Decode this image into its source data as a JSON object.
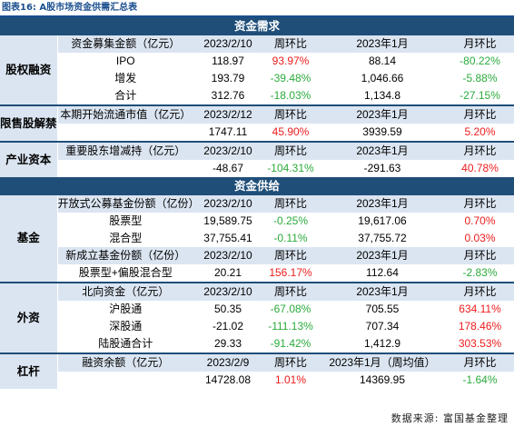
{
  "caption": "图表16: A股市场资金供需汇总表",
  "footer": "数据来源: 富国基金整理",
  "colors": {
    "header_bg": "#1f4e79",
    "label_bg": "#dbe5f1",
    "negative": "#2bab3c",
    "positive": "#ee1c1c"
  },
  "sections": [
    {
      "title": "资金需求",
      "groups": [
        {
          "category": "股权融资",
          "rows": [
            {
              "header": true,
              "cells": [
                "资金募集金额（亿元）",
                "2023/2/10",
                "周环比",
                "2023年1月",
                "月环比"
              ]
            },
            {
              "cells": [
                "IPO",
                "118.97",
                "93.97%",
                "88.14",
                "-80.22%"
              ]
            },
            {
              "cells": [
                "增发",
                "193.79",
                "-39.48%",
                "1,046.66",
                "-5.88%"
              ]
            },
            {
              "cells": [
                "合计",
                "312.76",
                "-18.03%",
                "1,134.8",
                "-27.15%"
              ]
            }
          ]
        },
        {
          "category": "限售股解禁",
          "rows": [
            {
              "header": true,
              "cells": [
                "本期开始流通市值（亿元）",
                "2023/2/12",
                "周环比",
                "2023年1月",
                "月环比"
              ]
            },
            {
              "cells": [
                "",
                "1747.11",
                "45.90%",
                "3939.59",
                "5.20%"
              ]
            }
          ]
        },
        {
          "category": "产业资本",
          "rows": [
            {
              "header": true,
              "cells": [
                "重要股东增减持（亿元）",
                "2023/2/10",
                "周环比",
                "2023年1月",
                "月环比"
              ]
            },
            {
              "cells": [
                "",
                "-48.67",
                "-104.31%",
                "-291.63",
                "40.78%"
              ]
            }
          ]
        }
      ]
    },
    {
      "title": "资金供给",
      "groups": [
        {
          "category": "基金",
          "rows": [
            {
              "header": true,
              "cells": [
                "开放式公募基金份额（亿份）",
                "2023/2/10",
                "周环比",
                "2023年1月",
                "月环比"
              ]
            },
            {
              "cells": [
                "股票型",
                "19,589.75",
                "-0.25%",
                "19,617.06",
                "0.70%"
              ]
            },
            {
              "cells": [
                "混合型",
                "37,755.41",
                "-0.11%",
                "37,755.72",
                "0.03%"
              ]
            },
            {
              "header": true,
              "cells": [
                "新成立基金份额（亿份）",
                "2023/2/10",
                "周环比",
                "2023年1月",
                "月环比"
              ]
            },
            {
              "cells": [
                "股票型+偏股混合型",
                "20.21",
                "156.17%",
                "112.64",
                "-2.83%"
              ]
            }
          ]
        },
        {
          "category": "外资",
          "rows": [
            {
              "header": true,
              "cells": [
                "北向资金（亿元）",
                "2023/2/10",
                "周环比",
                "2023年1月",
                "月环比"
              ]
            },
            {
              "cells": [
                "沪股通",
                "50.35",
                "-67.08%",
                "705.55",
                "634.11%"
              ]
            },
            {
              "cells": [
                "深股通",
                "-21.02",
                "-111.13%",
                "707.34",
                "178.46%"
              ]
            },
            {
              "cells": [
                "陆股通合计",
                "29.33",
                "-91.42%",
                "1,412.9",
                "303.53%"
              ]
            }
          ]
        },
        {
          "category": "杠杆",
          "rows": [
            {
              "header": true,
              "cells": [
                "融资余额（亿元）",
                "2023/2/9",
                "周环比",
                "2023年1月（周均值）",
                "月环比"
              ]
            },
            {
              "cells": [
                "",
                "14728.08",
                "1.01%",
                "14369.95",
                "-1.64%"
              ]
            }
          ]
        }
      ]
    }
  ]
}
